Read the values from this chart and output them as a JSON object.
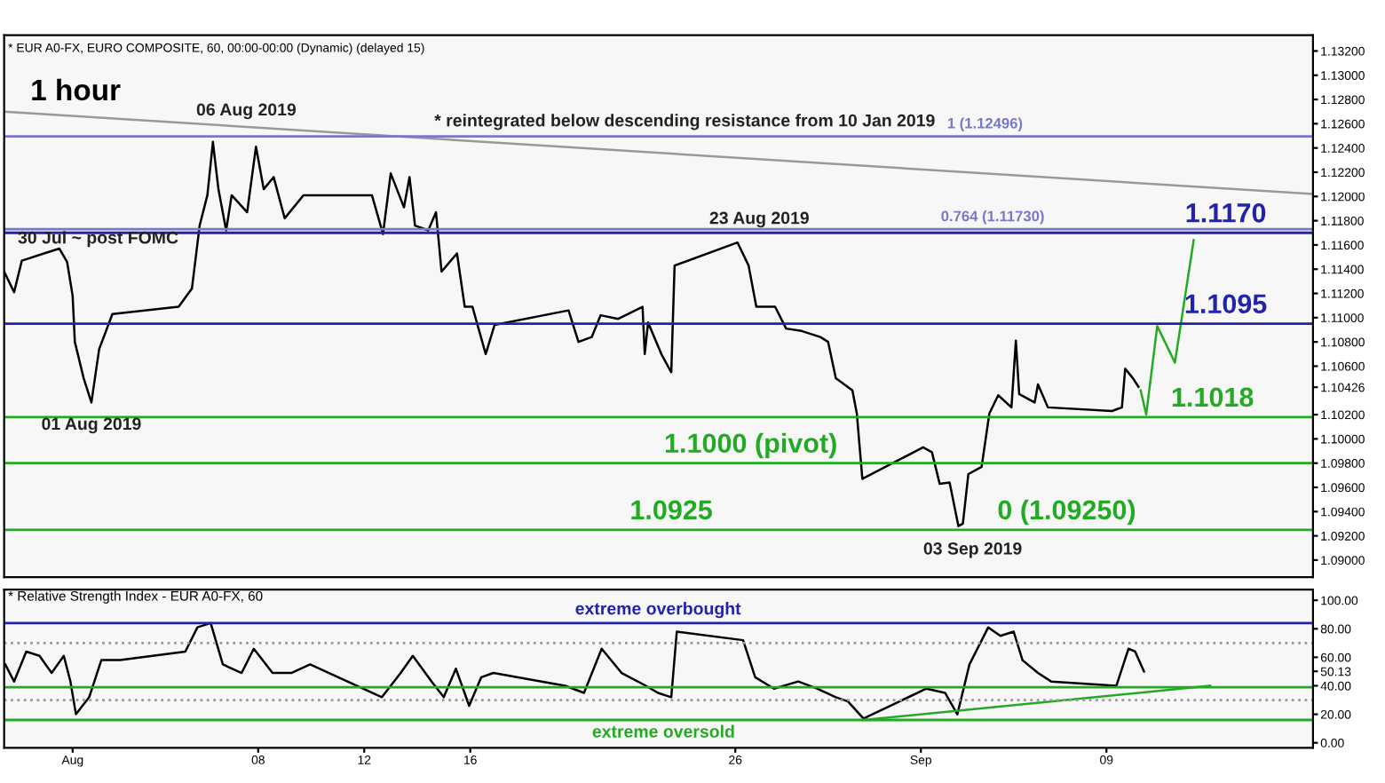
{
  "chart_data": [
    {
      "type": "line",
      "title": "1 hour",
      "subtitle": "* EUR A0-FX, EURO COMPOSITE, 60, 00:00-00:00 (Dynamic) (delayed 15)",
      "tick_labels": "y",
      "grid": false,
      "legend": false,
      "line_style": "solid",
      "marker": "none",
      "xlim": [
        "2019-07-29T10:00",
        "2019-09-16T19:00"
      ],
      "ylim": [
        1.0886,
        1.1333
      ],
      "yticks": [
        {
          "value": 1.09,
          "label": "1.09000"
        },
        {
          "value": 1.092,
          "label": "1.09200"
        },
        {
          "value": 1.094,
          "label": "1.09400"
        },
        {
          "value": 1.096,
          "label": "1.09600"
        },
        {
          "value": 1.098,
          "label": "1.09800"
        },
        {
          "value": 1.1,
          "label": "1.10000"
        },
        {
          "value": 1.102,
          "label": "1.10200"
        },
        {
          "value": 1.10426,
          "label": "1.10426"
        },
        {
          "value": 1.106,
          "label": "1.10600"
        },
        {
          "value": 1.108,
          "label": "1.10800"
        },
        {
          "value": 1.11,
          "label": "1.11000"
        },
        {
          "value": 1.112,
          "label": "1.11200"
        },
        {
          "value": 1.114,
          "label": "1.11400"
        },
        {
          "value": 1.116,
          "label": "1.11600"
        },
        {
          "value": 1.118,
          "label": "1.11800"
        },
        {
          "value": 1.12,
          "label": "1.12000"
        },
        {
          "value": 1.122,
          "label": "1.12200"
        },
        {
          "value": 1.124,
          "label": "1.12400"
        },
        {
          "value": 1.126,
          "label": "1.12600"
        },
        {
          "value": 1.128,
          "label": "1.12800"
        },
        {
          "value": 1.13,
          "label": "1.13000"
        },
        {
          "value": 1.132,
          "label": "1.13200"
        }
      ],
      "series": [
        {
          "color": "#000000",
          "x": [
            "2019-07-29T10:00",
            "2019-07-29T19:00",
            "2019-07-30T02:00",
            "2019-07-30T22:00",
            "2019-07-31T12:00",
            "2019-07-31T19:00",
            "2019-08-01T00:00",
            "2019-08-01T02:00",
            "2019-08-01T10:00",
            "2019-08-01T17:00",
            "2019-08-02T00:00",
            "2019-08-02T12:00",
            "2019-08-05T00:00",
            "2019-08-05T12:00",
            "2019-08-05T19:00",
            "2019-08-06T02:00",
            "2019-08-06T07:00",
            "2019-08-06T12:00",
            "2019-08-06T19:00",
            "2019-08-07T00:00",
            "2019-08-07T14:00",
            "2019-08-07T22:00",
            "2019-08-08T05:00",
            "2019-08-08T14:00",
            "2019-08-09T00:00",
            "2019-08-09T17:00",
            "2019-08-12T07:00",
            "2019-08-12T17:00",
            "2019-08-13T00:00",
            "2019-08-13T12:00",
            "2019-08-13T17:00",
            "2019-08-13T22:00",
            "2019-08-14T10:00",
            "2019-08-14T17:00",
            "2019-08-14T22:00",
            "2019-08-15T12:00",
            "2019-08-15T19:00",
            "2019-08-16T02:00",
            "2019-08-16T14:00",
            "2019-08-16T22:00",
            "2019-08-19T17:00",
            "2019-08-20T02:00",
            "2019-08-20T14:00",
            "2019-08-20T22:00",
            "2019-08-21T14:00",
            "2019-08-22T12:00",
            "2019-08-22T14:00",
            "2019-08-22T17:00",
            "2019-08-23T05:00",
            "2019-08-23T14:00",
            "2019-08-23T17:00",
            "2019-08-26T02:00",
            "2019-08-26T12:00",
            "2019-08-26T19:00",
            "2019-08-27T12:00",
            "2019-08-27T22:00",
            "2019-08-28T12:00",
            "2019-08-29T05:00",
            "2019-08-29T12:00",
            "2019-08-29T19:00",
            "2019-08-30T10:00",
            "2019-08-30T14:00",
            "2019-08-30T19:00",
            "2019-09-02T02:00",
            "2019-09-02T10:00",
            "2019-09-02T17:00",
            "2019-09-03T02:00",
            "2019-09-03T10:00",
            "2019-09-03T14:00",
            "2019-09-03T19:00",
            "2019-09-04T07:00",
            "2019-09-04T14:00",
            "2019-09-04T22:00",
            "2019-09-05T10:00",
            "2019-09-05T14:00",
            "2019-09-05T17:00",
            "2019-09-06T07:00",
            "2019-09-06T10:00",
            "2019-09-06T19:00",
            "2019-09-09T05:00",
            "2019-09-09T14:00",
            "2019-09-09T17:00",
            "2019-09-10T00:00",
            "2019-09-10T05:00"
          ],
          "values": [
            1.1138,
            1.1121,
            1.1147,
            1.1153,
            1.1157,
            1.1146,
            1.1118,
            1.108,
            1.105,
            1.103,
            1.1074,
            1.1103,
            1.1109,
            1.1124,
            1.1176,
            1.1201,
            1.1245,
            1.1206,
            1.1172,
            1.1201,
            1.1187,
            1.1241,
            1.1206,
            1.1216,
            1.1182,
            1.1201,
            1.1201,
            1.1169,
            1.1219,
            1.1191,
            1.1216,
            1.1176,
            1.1172,
            1.1187,
            1.1138,
            1.1153,
            1.1109,
            1.1109,
            1.107,
            1.1094,
            1.1106,
            1.108,
            1.1084,
            1.1102,
            1.1099,
            1.1109,
            1.107,
            1.1096,
            1.107,
            1.1055,
            1.1143,
            1.1162,
            1.1143,
            1.1109,
            1.1109,
            1.1091,
            1.1089,
            1.1084,
            1.108,
            1.105,
            1.104,
            1.1021,
            1.0967,
            1.0993,
            1.0989,
            1.0963,
            1.0964,
            1.0928,
            1.093,
            1.0971,
            1.0977,
            1.1021,
            1.1036,
            1.1026,
            1.1081,
            1.1037,
            1.103,
            1.1045,
            1.1026,
            1.1023,
            1.1026,
            1.1058,
            1.105,
            1.1043
          ]
        },
        {
          "color": "#999999",
          "x": [
            "2019-07-29T10:00",
            "2019-09-16T19:00"
          ],
          "values": [
            1.127,
            1.1202
          ]
        },
        {
          "color": "#22aa22",
          "x": [
            "2019-09-10T07:00",
            "2019-09-10T12:00",
            "2019-09-10T22:00",
            "2019-09-11T14:00",
            "2019-09-12T07:00"
          ],
          "values": [
            1.104,
            1.102,
            1.1093,
            1.1063,
            1.1164
          ]
        }
      ],
      "ref_lines": [
        {
          "axis": "y",
          "value": 1.117,
          "color": "#2222aa",
          "line_style": "solid"
        },
        {
          "axis": "y",
          "value": 1.1095,
          "color": "#2222aa",
          "line_style": "solid"
        },
        {
          "axis": "y",
          "value": 1.1018,
          "color": "#22aa22",
          "line_style": "solid"
        },
        {
          "axis": "y",
          "value": 1.098,
          "color": "#22aa22",
          "line_style": "solid"
        },
        {
          "axis": "y",
          "value": 1.0925,
          "color": "#22aa22",
          "line_style": "solid"
        },
        {
          "axis": "y",
          "value": 1.12496,
          "color": "#7777cc",
          "line_style": "solid"
        },
        {
          "axis": "y",
          "value": 1.1173,
          "color": "#7777cc",
          "line_style": "solid"
        }
      ],
      "annotations": [
        {
          "text": "1.1170",
          "x": "2019-09-13T12:00",
          "y": 1.117
        },
        {
          "text": "1.1095",
          "x": "2019-09-13T12:00",
          "y": 1.1095
        },
        {
          "text": "1.1018",
          "x": "2019-09-13T00:00",
          "y": 1.1018
        },
        {
          "text": "1.1000 (pivot)",
          "x": "2019-08-26T14:00",
          "y": 1.098
        },
        {
          "text": "1.0925",
          "x": "2019-08-23T14:00",
          "y": 1.0925
        },
        {
          "text": "1 (1.12496)",
          "x": "2019-09-04T10:00",
          "y": 1.12496
        },
        {
          "text": "0.764 (1.11730)",
          "x": "2019-09-04T17:00",
          "y": 1.1173
        },
        {
          "text": "0 (1.09250)",
          "x": "2019-09-07T12:00",
          "y": 1.0925
        },
        "06 Aug 2019",
        {
          "text": "30 Jul ~ post FOMC",
          "x": "2019-07-31T19:00",
          "y": 1.1146
        },
        {
          "text": "01 Aug 2019",
          "x": "2019-08-01T17:00",
          "y": 1.103
        },
        "23 Aug 2019",
        "03 Sep 2019",
        "* reintegrated below descending resistance from 10 Jan 2019"
      ]
    },
    {
      "type": "line",
      "title": "* Relative Strength Index - EUR A0-FX, 60",
      "grid": false,
      "legend": false,
      "line_style": "solid",
      "marker": "none",
      "xlim": [
        "2019-07-29T10:00",
        "2019-09-16T19:00"
      ],
      "ylim": [
        -3.5,
        107.5
      ],
      "xticks": [
        {
          "value": "2019-08-01",
          "label": "Aug"
        },
        {
          "value": "2019-08-08",
          "label": "08"
        },
        {
          "value": "2019-08-12",
          "label": "12"
        },
        {
          "value": "2019-08-16",
          "label": "16"
        },
        {
          "value": "2019-08-26",
          "label": "26"
        },
        {
          "value": "2019-09-02",
          "label": "Sep"
        },
        {
          "value": "2019-09-09",
          "label": "09"
        }
      ],
      "yticks": [
        {
          "value": 0,
          "label": "0.00"
        },
        {
          "value": 20,
          "label": "20.00"
        },
        {
          "value": 40,
          "label": "40.00"
        },
        {
          "value": 50.13,
          "label": "50.13"
        },
        {
          "value": 60,
          "label": "60.00"
        },
        {
          "value": 80,
          "label": "80.00"
        },
        {
          "value": 100,
          "label": "100.00"
        }
      ],
      "series": [
        {
          "color": "#000000",
          "x": [
            "2019-07-29T11:00",
            "2019-07-29T19:00",
            "2019-07-30T06:00",
            "2019-07-30T18:00",
            "2019-07-31T05:00",
            "2019-07-31T16:00",
            "2019-07-31T22:00",
            "2019-08-01T03:00",
            "2019-08-01T15:00",
            "2019-08-02T02:00",
            "2019-08-02T19:00",
            "2019-08-05T06:00",
            "2019-08-05T17:00",
            "2019-08-06T05:00",
            "2019-08-06T16:00",
            "2019-08-07T09:00",
            "2019-08-07T20:00",
            "2019-08-08T13:00",
            "2019-08-09T06:00",
            "2019-08-09T23:00",
            "2019-08-12T16:00",
            "2019-08-13T09:00",
            "2019-08-13T20:00",
            "2019-08-14T13:00",
            "2019-08-15T00:00",
            "2019-08-15T11:00",
            "2019-08-15T23:00",
            "2019-08-16T10:00",
            "2019-08-16T21:00",
            "2019-08-19T14:00",
            "2019-08-20T07:00",
            "2019-08-20T23:00",
            "2019-08-21T17:00",
            "2019-08-22T15:00",
            "2019-08-23T02:00",
            "2019-08-23T14:00",
            "2019-08-23T19:00",
            "2019-08-26T07:00",
            "2019-08-26T18:00",
            "2019-08-27T11:00",
            "2019-08-28T09:00",
            "2019-08-29T02:00",
            "2019-08-29T19:00",
            "2019-08-30T06:00",
            "2019-08-30T20:00",
            "2019-09-02T05:00",
            "2019-09-02T22:00",
            "2019-09-03T09:00",
            "2019-09-03T20:00",
            "2019-09-04T13:00",
            "2019-09-05T00:00",
            "2019-09-05T12:00",
            "2019-09-05T20:00",
            "2019-09-06T10:00",
            "2019-09-06T22:00",
            "2019-09-09T09:00",
            "2019-09-09T20:00",
            "2019-09-10T02:00",
            "2019-09-10T10:00"
          ],
          "values": [
            55,
            43,
            64,
            61,
            49,
            61,
            43,
            20,
            32,
            58,
            58,
            64,
            81,
            84,
            55,
            49,
            66,
            49,
            49,
            55,
            32,
            49,
            61,
            43,
            32,
            52,
            26,
            46,
            49,
            40,
            35,
            66,
            49,
            40,
            35,
            32,
            78,
            72,
            46,
            38,
            43,
            38,
            32,
            29,
            17,
            38,
            35,
            20,
            55,
            81,
            75,
            78,
            58,
            49,
            43,
            40,
            66,
            64,
            50
          ]
        },
        {
          "color": "#22aa22",
          "x": [
            "2019-08-30T20:00",
            "2019-09-12T22:00"
          ],
          "values": [
            16,
            40
          ]
        }
      ],
      "ref_lines": [
        {
          "axis": "y",
          "value": 84,
          "color": "#2222aa",
          "line_style": "solid"
        },
        {
          "axis": "y",
          "value": 16,
          "color": "#22aa22",
          "line_style": "solid"
        },
        {
          "axis": "y",
          "value": 70,
          "color": "#999999",
          "line_style": "dotted"
        },
        {
          "axis": "y",
          "value": 30,
          "color": "#999999",
          "line_style": "dotted"
        },
        {
          "axis": "y",
          "value": 39,
          "color": "#22aa22",
          "line_style": "solid"
        }
      ],
      "annotations": [
        {
          "text": "extreme overbought",
          "x": "2019-08-23T02:00",
          "y": 84
        },
        {
          "text": "extreme oversold",
          "x": "2019-08-23T07:00",
          "y": 16
        }
      ]
    }
  ]
}
